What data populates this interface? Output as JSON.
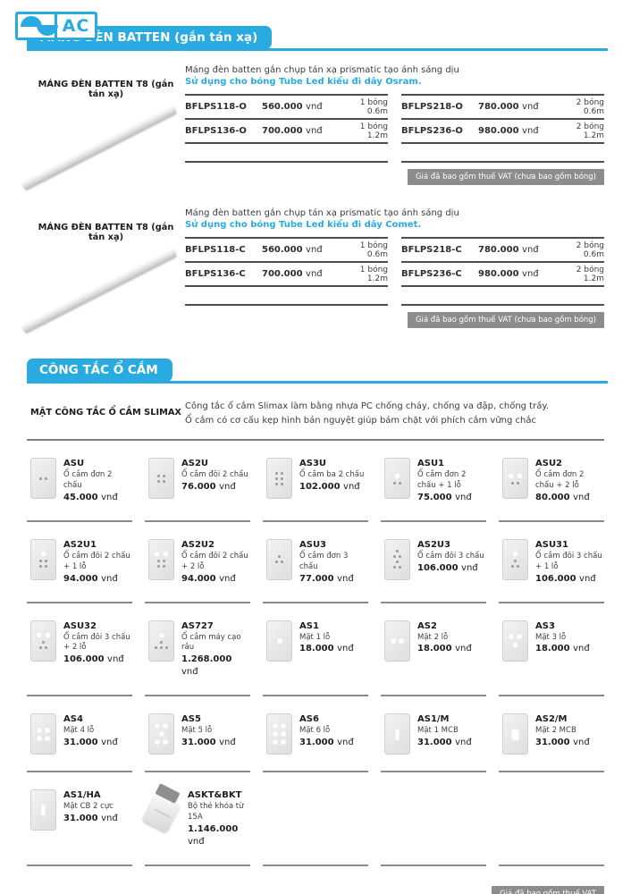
{
  "colors": {
    "accent": "#29ABE2",
    "badge_bg": "#8C8C8C",
    "rule_gray": "#8A8A8A",
    "table_border": "#4D4D4D"
  },
  "logo": {
    "text": "AC",
    "icon": "ac-wave-logo-icon"
  },
  "batten_section": {
    "title": "MÁNG ĐÈN BATTEN (gắn tán xạ)",
    "blocks": [
      {
        "label": "MÁNG ĐÈN BATTEN T8 (gắn tán xạ)",
        "desc": "Máng đèn batten gắn chụp tán xạ prismatic tạo ánh sáng dịu",
        "accent_desc": "Sử dụng cho bóng Tube Led kiểu đi dây Osram.",
        "vat_note": "Giá đã bao gồm thuế VAT (chưa bao gồm bóng)",
        "tables": [
          [
            {
              "model": "BFLPS118-O",
              "price": "560.000",
              "currency": "vnđ",
              "spec": "1 bóng 0.6m"
            },
            {
              "model": "BFLPS136-O",
              "price": "700.000",
              "currency": "vnđ",
              "spec": "1 bóng 1.2m"
            }
          ],
          [
            {
              "model": "BFLPS218-O",
              "price": "780.000",
              "currency": "vnđ",
              "spec": "2 bóng 0.6m"
            },
            {
              "model": "BFLPS236-O",
              "price": "980.000",
              "currency": "vnđ",
              "spec": "2 bóng 1.2m"
            }
          ]
        ]
      },
      {
        "label": "MÁNG ĐÈN BATTEN T8 (gắn tán xạ)",
        "desc": "Máng đèn batten gắn chụp tán xạ prismatic tạo ánh sáng dịu",
        "accent_desc": "Sử dụng cho bóng Tube Led kiểu đi dây Comet.",
        "vat_note": "Giá đã bao gồm thuế VAT (chưa bao gồm bóng)",
        "tables": [
          [
            {
              "model": "BFLPS118-C",
              "price": "560.000",
              "currency": "vnđ",
              "spec": "1 bóng 0.6m"
            },
            {
              "model": "BFLPS136-C",
              "price": "700.000",
              "currency": "vnđ",
              "spec": "1 bóng 1.2m"
            }
          ],
          [
            {
              "model": "BFLPS218-C",
              "price": "780.000",
              "currency": "vnđ",
              "spec": "2 bóng 0.6m"
            },
            {
              "model": "BFLPS236-C",
              "price": "980.000",
              "currency": "vnđ",
              "spec": "2 bóng 1.2m"
            }
          ]
        ]
      }
    ]
  },
  "switch_section": {
    "title": "CÔNG TẮC Ổ CẮM",
    "sub_label": "MẶT CÔNG TẮC Ổ CẮM SLIMAX",
    "desc_line1": "Công tắc ổ cắm Slimax làm bằng nhựa PC chống cháy, chống va đập, chống trầy.",
    "desc_line2": "Ổ cắm có cơ cấu kẹp hình bán nguyệt giúp bám chặt với phích cắm vững chắc",
    "vat_note": "Giá đã bao gồm thuế VAT",
    "products": [
      {
        "code": "ASU",
        "desc": "Ổ cắm đơn 2 chấu",
        "price": "45.000",
        "currency": "vnđ",
        "icon": "socket-plate-2pin-icon"
      },
      {
        "code": "AS2U",
        "desc": "Ổ cắm đôi 2 chấu",
        "price": "76.000",
        "currency": "vnđ",
        "icon": "socket-plate-2x2pin-icon"
      },
      {
        "code": "AS3U",
        "desc": "Ổ cắm ba 2 chấu",
        "price": "102.000",
        "currency": "vnđ",
        "icon": "socket-plate-3x2pin-icon"
      },
      {
        "code": "ASU1",
        "desc": "Ổ cắm đơn 2 chấu + 1 lỗ",
        "price": "75.000",
        "currency": "vnđ",
        "icon": "socket-plate-2pin-1hole-icon"
      },
      {
        "code": "ASU2",
        "desc": "Ổ cắm đơn 2 chấu + 2 lỗ",
        "price": "80.000",
        "currency": "vnđ",
        "icon": "socket-plate-2pin-2hole-icon"
      },
      {
        "code": "AS2U1",
        "desc": "Ổ cắm đôi 2 chấu + 1 lỗ",
        "price": "94.000",
        "currency": "vnđ",
        "icon": "socket-plate-2x2pin-1hole-icon"
      },
      {
        "code": "AS2U2",
        "desc": "Ổ cắm đôi 2 chấu + 2 lỗ",
        "price": "94.000",
        "currency": "vnđ",
        "icon": "socket-plate-2x2pin-2hole-icon"
      },
      {
        "code": "ASU3",
        "desc": "Ổ cắm đơn 3 chấu",
        "price": "77.000",
        "currency": "vnđ",
        "icon": "socket-plate-3pin-icon"
      },
      {
        "code": "AS2U3",
        "desc": "Ổ cắm đôi 3 chấu",
        "price": "106.000",
        "currency": "vnđ",
        "icon": "socket-plate-2x3pin-icon"
      },
      {
        "code": "ASU31",
        "desc": "Ổ cắm đôi 3 chấu + 1 lỗ",
        "price": "106.000",
        "currency": "vnđ",
        "icon": "socket-plate-3pin-1hole-icon"
      },
      {
        "code": "ASU32",
        "desc": "Ổ cắm đôi 3 chấu + 2 lỗ",
        "price": "106.000",
        "currency": "vnđ",
        "icon": "socket-plate-3pin-2hole-icon"
      },
      {
        "code": "AS727",
        "desc": "Ổ cắm máy cạo râu",
        "price": "1.268.000",
        "currency": "vnđ",
        "icon": "socket-plate-shaver-icon"
      },
      {
        "code": "AS1",
        "desc": "Mặt 1 lỗ",
        "price": "18.000",
        "currency": "vnđ",
        "icon": "plate-1slot-icon"
      },
      {
        "code": "AS2",
        "desc": "Mặt 2 lỗ",
        "price": "18.000",
        "currency": "vnđ",
        "icon": "plate-2slot-icon"
      },
      {
        "code": "AS3",
        "desc": "Mặt 3 lỗ",
        "price": "18.000",
        "currency": "vnđ",
        "icon": "plate-3slot-icon"
      },
      {
        "code": "AS4",
        "desc": "Mặt 4 lỗ",
        "price": "31.000",
        "currency": "vnđ",
        "icon": "plate-4slot-icon"
      },
      {
        "code": "AS5",
        "desc": "Mặt 5 lỗ",
        "price": "31.000",
        "currency": "vnđ",
        "icon": "plate-5slot-icon"
      },
      {
        "code": "AS6",
        "desc": "Mặt 6 lỗ",
        "price": "31.000",
        "currency": "vnđ",
        "icon": "plate-6slot-icon"
      },
      {
        "code": "AS1/M",
        "desc": "Mặt 1 MCB",
        "price": "31.000",
        "currency": "vnđ",
        "icon": "plate-1mcb-icon"
      },
      {
        "code": "AS2/M",
        "desc": "Mặt 2 MCB",
        "price": "31.000",
        "currency": "vnđ",
        "icon": "plate-2mcb-icon"
      },
      {
        "code": "AS1/HA",
        "desc": "Mặt CB 2 cực",
        "price": "31.000",
        "currency": "vnđ",
        "icon": "plate-cb-2pole-icon"
      },
      {
        "code": "ASKT&BKT",
        "desc": "Bộ thẻ khóa từ 15A",
        "price": "1.146.000",
        "currency": "vnđ",
        "icon": "keycard-set-icon"
      }
    ]
  }
}
